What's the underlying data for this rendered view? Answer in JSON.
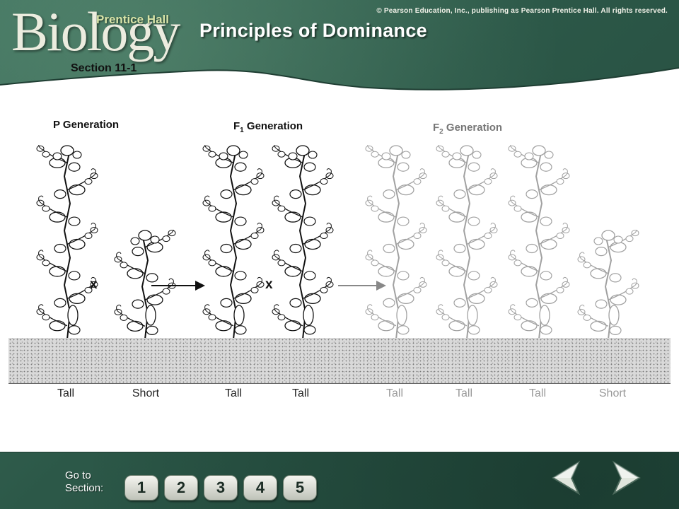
{
  "header": {
    "copyright": "© Pearson Education, Inc., publishing as Pearson Prentice Hall. All rights reserved.",
    "logo_word": "Biology",
    "logo_publisher": "Prentice Hall",
    "title": "Principles of Dominance",
    "section": "Section 11-1"
  },
  "figure": {
    "p_generation": "P Generation",
    "f1_generation": {
      "f": "F",
      "sub": "1",
      "rest": " Generation"
    },
    "f2_generation": {
      "f": "F",
      "sub": "2",
      "rest": " Generation"
    },
    "cross_symbol": "x",
    "plant_labels": [
      "Tall",
      "Short",
      "Tall",
      "Tall",
      "Tall",
      "Tall",
      "Tall",
      "Short"
    ]
  },
  "footer": {
    "goto_line1": "Go to",
    "goto_line2": "Section:",
    "sections": [
      "1",
      "2",
      "3",
      "4",
      "5"
    ],
    "prev_icon": "left-arrow-icon",
    "next_icon": "right-arrow-icon"
  },
  "colors": {
    "frame_green": "#2c5848",
    "panel_white": "#ffffff",
    "title_white": "#ffffff"
  }
}
